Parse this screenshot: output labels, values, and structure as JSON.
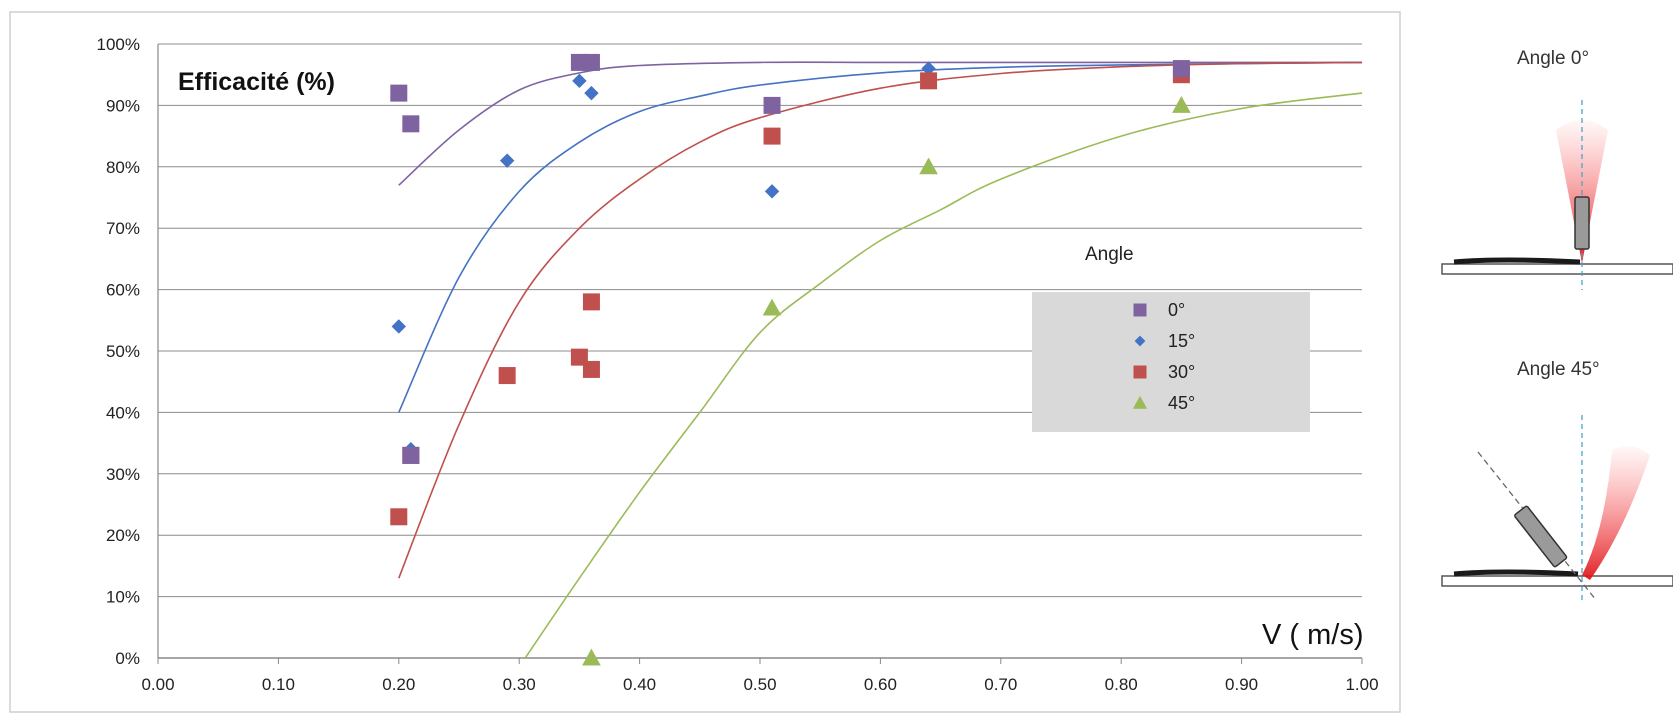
{
  "chart_data": {
    "type": "scatter",
    "ylabel": "Efficacité (%)",
    "xlabel": "V ( m/s)",
    "xlim": [
      0,
      1
    ],
    "ylim": [
      0,
      100
    ],
    "x_ticks": [
      "0.00",
      "0.10",
      "0.20",
      "0.30",
      "0.40",
      "0.50",
      "0.60",
      "0.70",
      "0.80",
      "0.90",
      "1.00"
    ],
    "y_ticks": [
      "0%",
      "10%",
      "20%",
      "30%",
      "40%",
      "50%",
      "60%",
      "70%",
      "80%",
      "90%",
      "100%"
    ],
    "grid": "horizontal",
    "legend": {
      "title": "Angle",
      "placement": "right",
      "entries": [
        "0°",
        "15°",
        "30°",
        "45°"
      ]
    },
    "series": [
      {
        "name": "0°",
        "marker": "square",
        "color": "#7f63a1",
        "points": [
          [
            0.2,
            92
          ],
          [
            0.21,
            87
          ],
          [
            0.21,
            33
          ],
          [
            0.35,
            97
          ],
          [
            0.36,
            97
          ],
          [
            0.51,
            90
          ],
          [
            0.85,
            96
          ]
        ],
        "trendline": [
          [
            0.2,
            77
          ],
          [
            0.25,
            86
          ],
          [
            0.3,
            92.5
          ],
          [
            0.35,
            95.3
          ],
          [
            0.4,
            96.5
          ],
          [
            0.5,
            97
          ],
          [
            0.6,
            97
          ],
          [
            0.7,
            97
          ],
          [
            0.8,
            97
          ],
          [
            1.0,
            97
          ]
        ]
      },
      {
        "name": "15°",
        "marker": "diamond",
        "color": "#4472c4",
        "points": [
          [
            0.2,
            54
          ],
          [
            0.21,
            34
          ],
          [
            0.29,
            81
          ],
          [
            0.35,
            94
          ],
          [
            0.36,
            92
          ],
          [
            0.51,
            76
          ],
          [
            0.64,
            96
          ]
        ],
        "trendline": [
          [
            0.2,
            40
          ],
          [
            0.25,
            62
          ],
          [
            0.3,
            76
          ],
          [
            0.35,
            84
          ],
          [
            0.4,
            89
          ],
          [
            0.45,
            91.5
          ],
          [
            0.5,
            93.3
          ],
          [
            0.6,
            95.3
          ],
          [
            0.7,
            96.2
          ],
          [
            0.8,
            96.6
          ],
          [
            1.0,
            97
          ]
        ]
      },
      {
        "name": "30°",
        "marker": "square",
        "color": "#c0504d",
        "points": [
          [
            0.2,
            23
          ],
          [
            0.21,
            33
          ],
          [
            0.29,
            46
          ],
          [
            0.35,
            49
          ],
          [
            0.36,
            58
          ],
          [
            0.36,
            47
          ],
          [
            0.51,
            85
          ],
          [
            0.64,
            94
          ],
          [
            0.85,
            95
          ]
        ],
        "trendline": [
          [
            0.2,
            13
          ],
          [
            0.25,
            38
          ],
          [
            0.3,
            58
          ],
          [
            0.35,
            70
          ],
          [
            0.4,
            78
          ],
          [
            0.45,
            84
          ],
          [
            0.5,
            88
          ],
          [
            0.6,
            92.8
          ],
          [
            0.7,
            95.2
          ],
          [
            0.8,
            96.3
          ],
          [
            0.9,
            96.8
          ],
          [
            1.0,
            97
          ]
        ]
      },
      {
        "name": "45°",
        "marker": "triangle",
        "color": "#9bbb59",
        "points": [
          [
            0.36,
            0
          ],
          [
            0.51,
            57
          ],
          [
            0.64,
            80
          ],
          [
            0.85,
            90
          ]
        ],
        "trendline": [
          [
            0.305,
            0
          ],
          [
            0.35,
            13
          ],
          [
            0.4,
            27
          ],
          [
            0.45,
            40
          ],
          [
            0.5,
            53
          ],
          [
            0.55,
            61
          ],
          [
            0.6,
            68
          ],
          [
            0.65,
            73
          ],
          [
            0.7,
            78
          ],
          [
            0.8,
            85
          ],
          [
            0.9,
            89.5
          ],
          [
            1.0,
            92
          ]
        ]
      }
    ]
  },
  "diagrams": [
    {
      "title": "Angle 0°"
    },
    {
      "title": "Angle 45°"
    }
  ]
}
